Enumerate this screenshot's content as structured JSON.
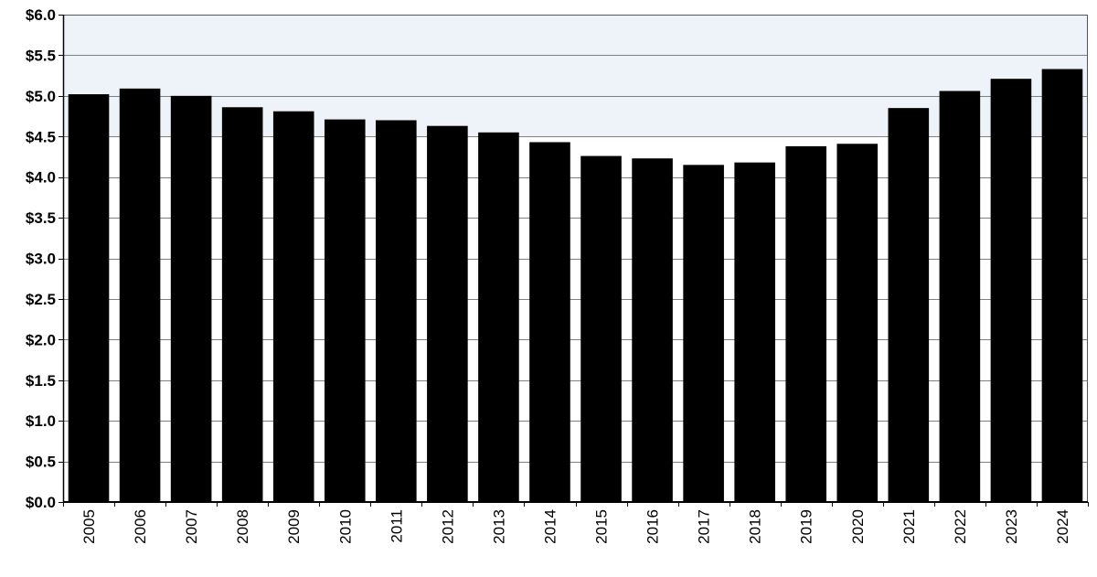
{
  "chart_data": {
    "type": "bar",
    "title": "",
    "xlabel": "",
    "ylabel": "",
    "categories": [
      "2005",
      "2006",
      "2007",
      "2008",
      "2009",
      "2010",
      "2011",
      "2012",
      "2013",
      "2014",
      "2015",
      "2016",
      "2017",
      "2018",
      "2019",
      "2020",
      "2021",
      "2022",
      "2023",
      "2024"
    ],
    "values": [
      5.02,
      5.09,
      5.0,
      4.86,
      4.81,
      4.71,
      4.7,
      4.63,
      4.55,
      4.43,
      4.26,
      4.23,
      4.15,
      4.18,
      4.38,
      4.41,
      4.85,
      5.06,
      5.21,
      5.33
    ],
    "ylim": [
      0,
      6
    ],
    "y_ticks": [
      0.0,
      0.5,
      1.0,
      1.5,
      2.0,
      2.5,
      3.0,
      3.5,
      4.0,
      4.5,
      5.0,
      5.5,
      6.0
    ],
    "y_tick_labels": [
      "$0.0",
      "$0.5",
      "$1.0",
      "$1.5",
      "$2.0",
      "$2.5",
      "$3.0",
      "$3.5",
      "$4.0",
      "$4.5",
      "$5.0",
      "$5.5",
      "$6.0"
    ],
    "grid": true,
    "legend": "none",
    "bar_color": "#000000",
    "background_band_color": "#eef3f9",
    "background_band_range": [
      4.5,
      6.0
    ],
    "gridline_color": "#7f7f7f"
  }
}
